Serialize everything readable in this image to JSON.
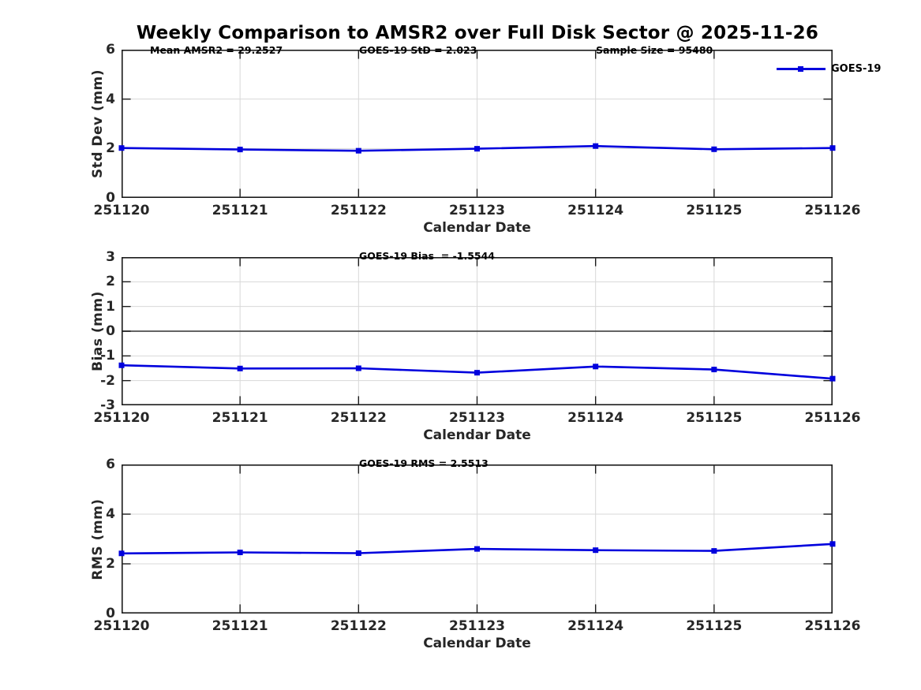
{
  "title": "Weekly Comparison to AMSR2 over Full Disk Sector @ 2025-11-26",
  "legend": {
    "label": "GOES-19"
  },
  "colors": {
    "line": "#0000dd",
    "grid": "#d8d8d8",
    "spine": "#1a1a1a",
    "zero_line": "#4d4d4d",
    "tick_text": "#262626",
    "text": "#000000"
  },
  "chart_data": {
    "type": "line",
    "title": "Weekly Comparison to AMSR2 over Full Disk Sector @ 2025-11-26",
    "categories": [
      "251120",
      "251121",
      "251122",
      "251123",
      "251124",
      "251125",
      "251126"
    ],
    "x_axis_label": "Calendar Date",
    "series_name": "GOES-19",
    "legend_position": "top-right",
    "grid": true,
    "subplots": [
      {
        "ylabel": "Std Dev (mm)",
        "ylim": [
          0,
          6
        ],
        "yticks": [
          6,
          4,
          2,
          0
        ],
        "values": [
          2.02,
          1.96,
          1.91,
          1.99,
          2.1,
          1.97,
          2.02
        ],
        "zero_line": false,
        "show_legend": true,
        "annotations": [
          {
            "text": "Mean AMSR2 = 29.2527"
          },
          {
            "text": "GOES-19 StD = 2.023"
          },
          {
            "text": "Sample Size = 95480"
          }
        ]
      },
      {
        "ylabel": "Bias (mm)",
        "ylim": [
          -3,
          3
        ],
        "yticks": [
          3,
          2,
          1,
          0,
          -1,
          -2,
          -3
        ],
        "values": [
          -1.38,
          -1.51,
          -1.5,
          -1.68,
          -1.43,
          -1.55,
          -1.92
        ],
        "zero_line": true,
        "show_legend": false,
        "annotations": [
          {
            "text": "GOES-19 Bias  = -1.5544"
          }
        ]
      },
      {
        "ylabel": "RMS (mm)",
        "ylim": [
          0,
          6
        ],
        "yticks": [
          6,
          4,
          2,
          0
        ],
        "values": [
          2.42,
          2.46,
          2.43,
          2.6,
          2.55,
          2.52,
          2.8
        ],
        "zero_line": false,
        "show_legend": false,
        "annotations": [
          {
            "text": "GOES-19 RMS = 2.5513"
          }
        ]
      }
    ]
  }
}
